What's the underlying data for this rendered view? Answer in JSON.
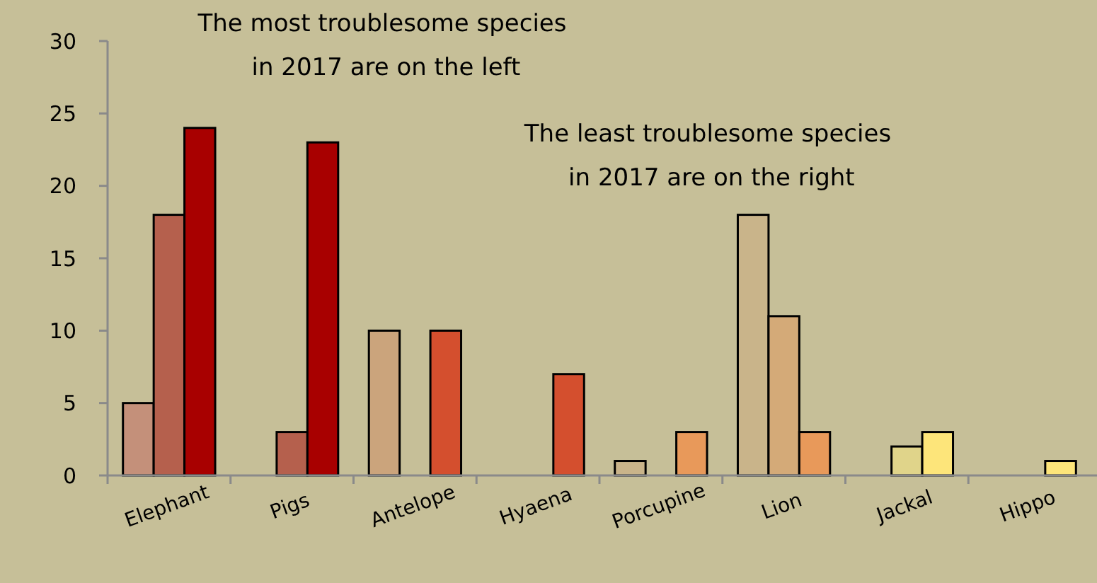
{
  "chart_data": {
    "type": "bar",
    "categories": [
      "Elephant",
      "Pigs",
      "Antelope",
      "Hyaena",
      "Porcupine",
      "Lion",
      "Jackal",
      "Hippo"
    ],
    "series": [
      {
        "colors": [
          "#c4907a",
          "#c4907a",
          "#cba47c",
          "#cba47c",
          "#c9b48a",
          "#c9b48a",
          "#e0d48a",
          "#fde57a"
        ],
        "values": [
          5,
          0,
          10,
          0,
          1,
          18,
          0,
          0
        ]
      },
      {
        "colors": [
          "#b5604d",
          "#b5604d",
          "#cba47c",
          "#d44f2e",
          "#c9b48a",
          "#d4aa78",
          "#e0d48a",
          "#fde57a"
        ],
        "values": [
          18,
          3,
          0,
          0,
          0,
          11,
          2,
          0
        ]
      },
      {
        "colors": [
          "#a80000",
          "#a80000",
          "#d44f2e",
          "#d44f2e",
          "#e8995a",
          "#e8995a",
          "#fde57a",
          "#fde57a"
        ],
        "values": [
          24,
          23,
          10,
          7,
          3,
          3,
          3,
          1
        ]
      }
    ],
    "ylim": [
      0,
      30
    ],
    "yticks": [
      0,
      5,
      10,
      15,
      20,
      25,
      30
    ],
    "annotations": [
      "The most troublesome species\n in 2017 are on the left",
      "The least troublesome species\n in 2017 are on the right"
    ]
  }
}
